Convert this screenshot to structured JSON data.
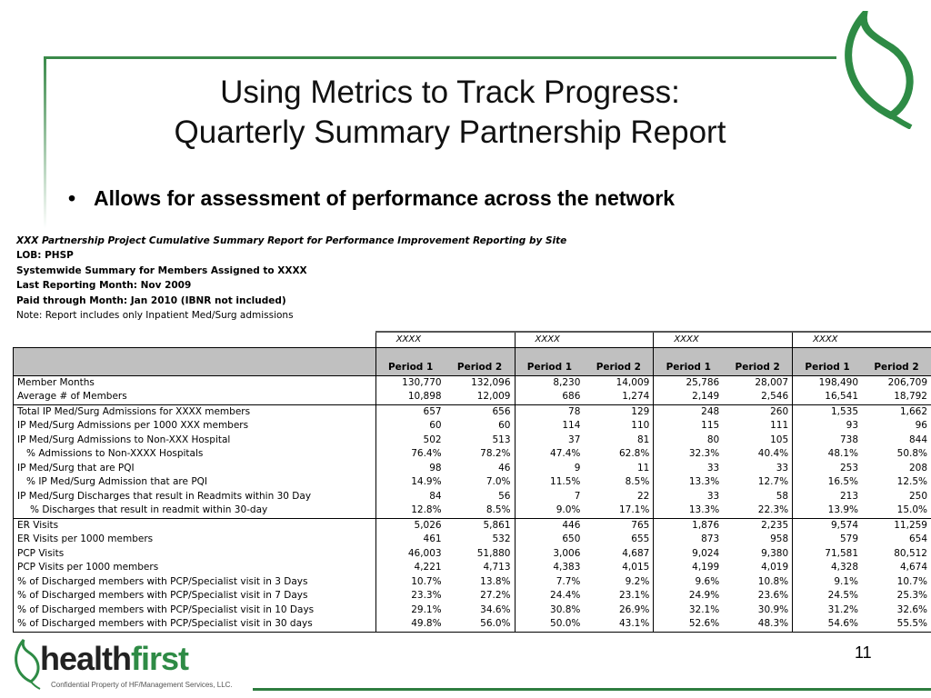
{
  "slide": {
    "title_line1": "Using Metrics to Track Progress:",
    "title_line2": "Quarterly Summary Partnership Report",
    "bullet": "Allows for assessment of performance across the network",
    "page_number": "11",
    "accent_color": "#2e8b45"
  },
  "report_meta": {
    "line1": "XXX Partnership Project Cumulative Summary Report for Performance Improvement Reporting by Site",
    "line2": "LOB:  PHSP",
    "line3": "Systemwide Summary for Members Assigned to XXXX",
    "line4": "Last Reporting Month:  Nov 2009",
    "line5": "Paid through Month: Jan 2010 (IBNR not included)",
    "line6": "Note: Report includes only Inpatient Med/Surg admissions"
  },
  "table": {
    "sites": [
      "XXXX",
      "XXXX",
      "XXXX",
      "XXXX"
    ],
    "period_headers": [
      "Period 1",
      "Period 2",
      "Period 1",
      "Period 2",
      "Period 1",
      "Period 2",
      "Period 1",
      "Period 2"
    ],
    "rows": [
      {
        "label": "Member Months",
        "values": [
          "130,770",
          "132,096",
          "8,230",
          "14,009",
          "25,786",
          "28,007",
          "198,490",
          "206,709"
        ]
      },
      {
        "label": "Average #  of Members",
        "values": [
          "10,898",
          "12,009",
          "686",
          "1,274",
          "2,149",
          "2,546",
          "16,541",
          "18,792"
        ]
      },
      {
        "label": "Total IP Med/Surg Admissions for XXXX members",
        "values": [
          "657",
          "656",
          "78",
          "129",
          "248",
          "260",
          "1,535",
          "1,662"
        ],
        "sep": true
      },
      {
        "label": "IP Med/Surg Admissions per 1000 XXX members",
        "values": [
          "60",
          "60",
          "114",
          "110",
          "115",
          "111",
          "93",
          "96"
        ]
      },
      {
        "label": "IP Med/Surg Admissions to Non-XXX  Hospital",
        "values": [
          "502",
          "513",
          "37",
          "81",
          "80",
          "105",
          "738",
          "844"
        ]
      },
      {
        "label": "% Admissions to Non-XXXX Hospitals",
        "values": [
          "76.4%",
          "78.2%",
          "47.4%",
          "62.8%",
          "32.3%",
          "40.4%",
          "48.1%",
          "50.8%"
        ],
        "indent": 1
      },
      {
        "label": "IP Med/Surg that are PQI",
        "values": [
          "98",
          "46",
          "9",
          "11",
          "33",
          "33",
          "253",
          "208"
        ]
      },
      {
        "label": "% IP Med/Surg Admission that are PQI",
        "values": [
          "14.9%",
          "7.0%",
          "11.5%",
          "8.5%",
          "13.3%",
          "12.7%",
          "16.5%",
          "12.5%"
        ],
        "indent": 1
      },
      {
        "label": "IP Med/Surg Discharges that result in Readmits within 30 Day",
        "values": [
          "84",
          "56",
          "7",
          "22",
          "33",
          "58",
          "213",
          "250"
        ]
      },
      {
        "label": "% Discharges that result in readmit within 30-day",
        "values": [
          "12.8%",
          "8.5%",
          "9.0%",
          "17.1%",
          "13.3%",
          "22.3%",
          "13.9%",
          "15.0%"
        ],
        "indent": 2
      },
      {
        "label": "ER Visits",
        "values": [
          "5,026",
          "5,861",
          "446",
          "765",
          "1,876",
          "2,235",
          "9,574",
          "11,259"
        ],
        "sep": true
      },
      {
        "label": "ER Visits per 1000 members",
        "values": [
          "461",
          "532",
          "650",
          "655",
          "873",
          "958",
          "579",
          "654"
        ]
      },
      {
        "label": "PCP Visits",
        "values": [
          "46,003",
          "51,880",
          "3,006",
          "4,687",
          "9,024",
          "9,380",
          "71,581",
          "80,512"
        ]
      },
      {
        "label": "PCP Visits per 1000 members",
        "values": [
          "4,221",
          "4,713",
          "4,383",
          "4,015",
          "4,199",
          "4,019",
          "4,328",
          "4,674"
        ]
      },
      {
        "label": "% of Discharged members with PCP/Specialist visit in 3 Days",
        "values": [
          "10.7%",
          "13.8%",
          "7.7%",
          "9.2%",
          "9.6%",
          "10.8%",
          "9.1%",
          "10.7%"
        ]
      },
      {
        "label": "% of Discharged members with PCP/Specialist visit in 7 Days",
        "values": [
          "23.3%",
          "27.2%",
          "24.4%",
          "23.1%",
          "24.9%",
          "23.6%",
          "24.5%",
          "25.3%"
        ]
      },
      {
        "label": "% of Discharged members with PCP/Specialist visit in 10 Days",
        "values": [
          "29.1%",
          "34.6%",
          "30.8%",
          "26.9%",
          "32.1%",
          "30.9%",
          "31.2%",
          "32.6%"
        ]
      },
      {
        "label": "% of Discharged members with PCP/Specialist visit in 30 days",
        "values": [
          "49.8%",
          "56.0%",
          "50.0%",
          "43.1%",
          "52.6%",
          "48.3%",
          "54.6%",
          "55.5%"
        ]
      }
    ]
  },
  "footer": {
    "logo_text_part1": "health",
    "logo_text_part2": "first",
    "confidential": "Confidential Property of HF/Management Services, LLC."
  }
}
